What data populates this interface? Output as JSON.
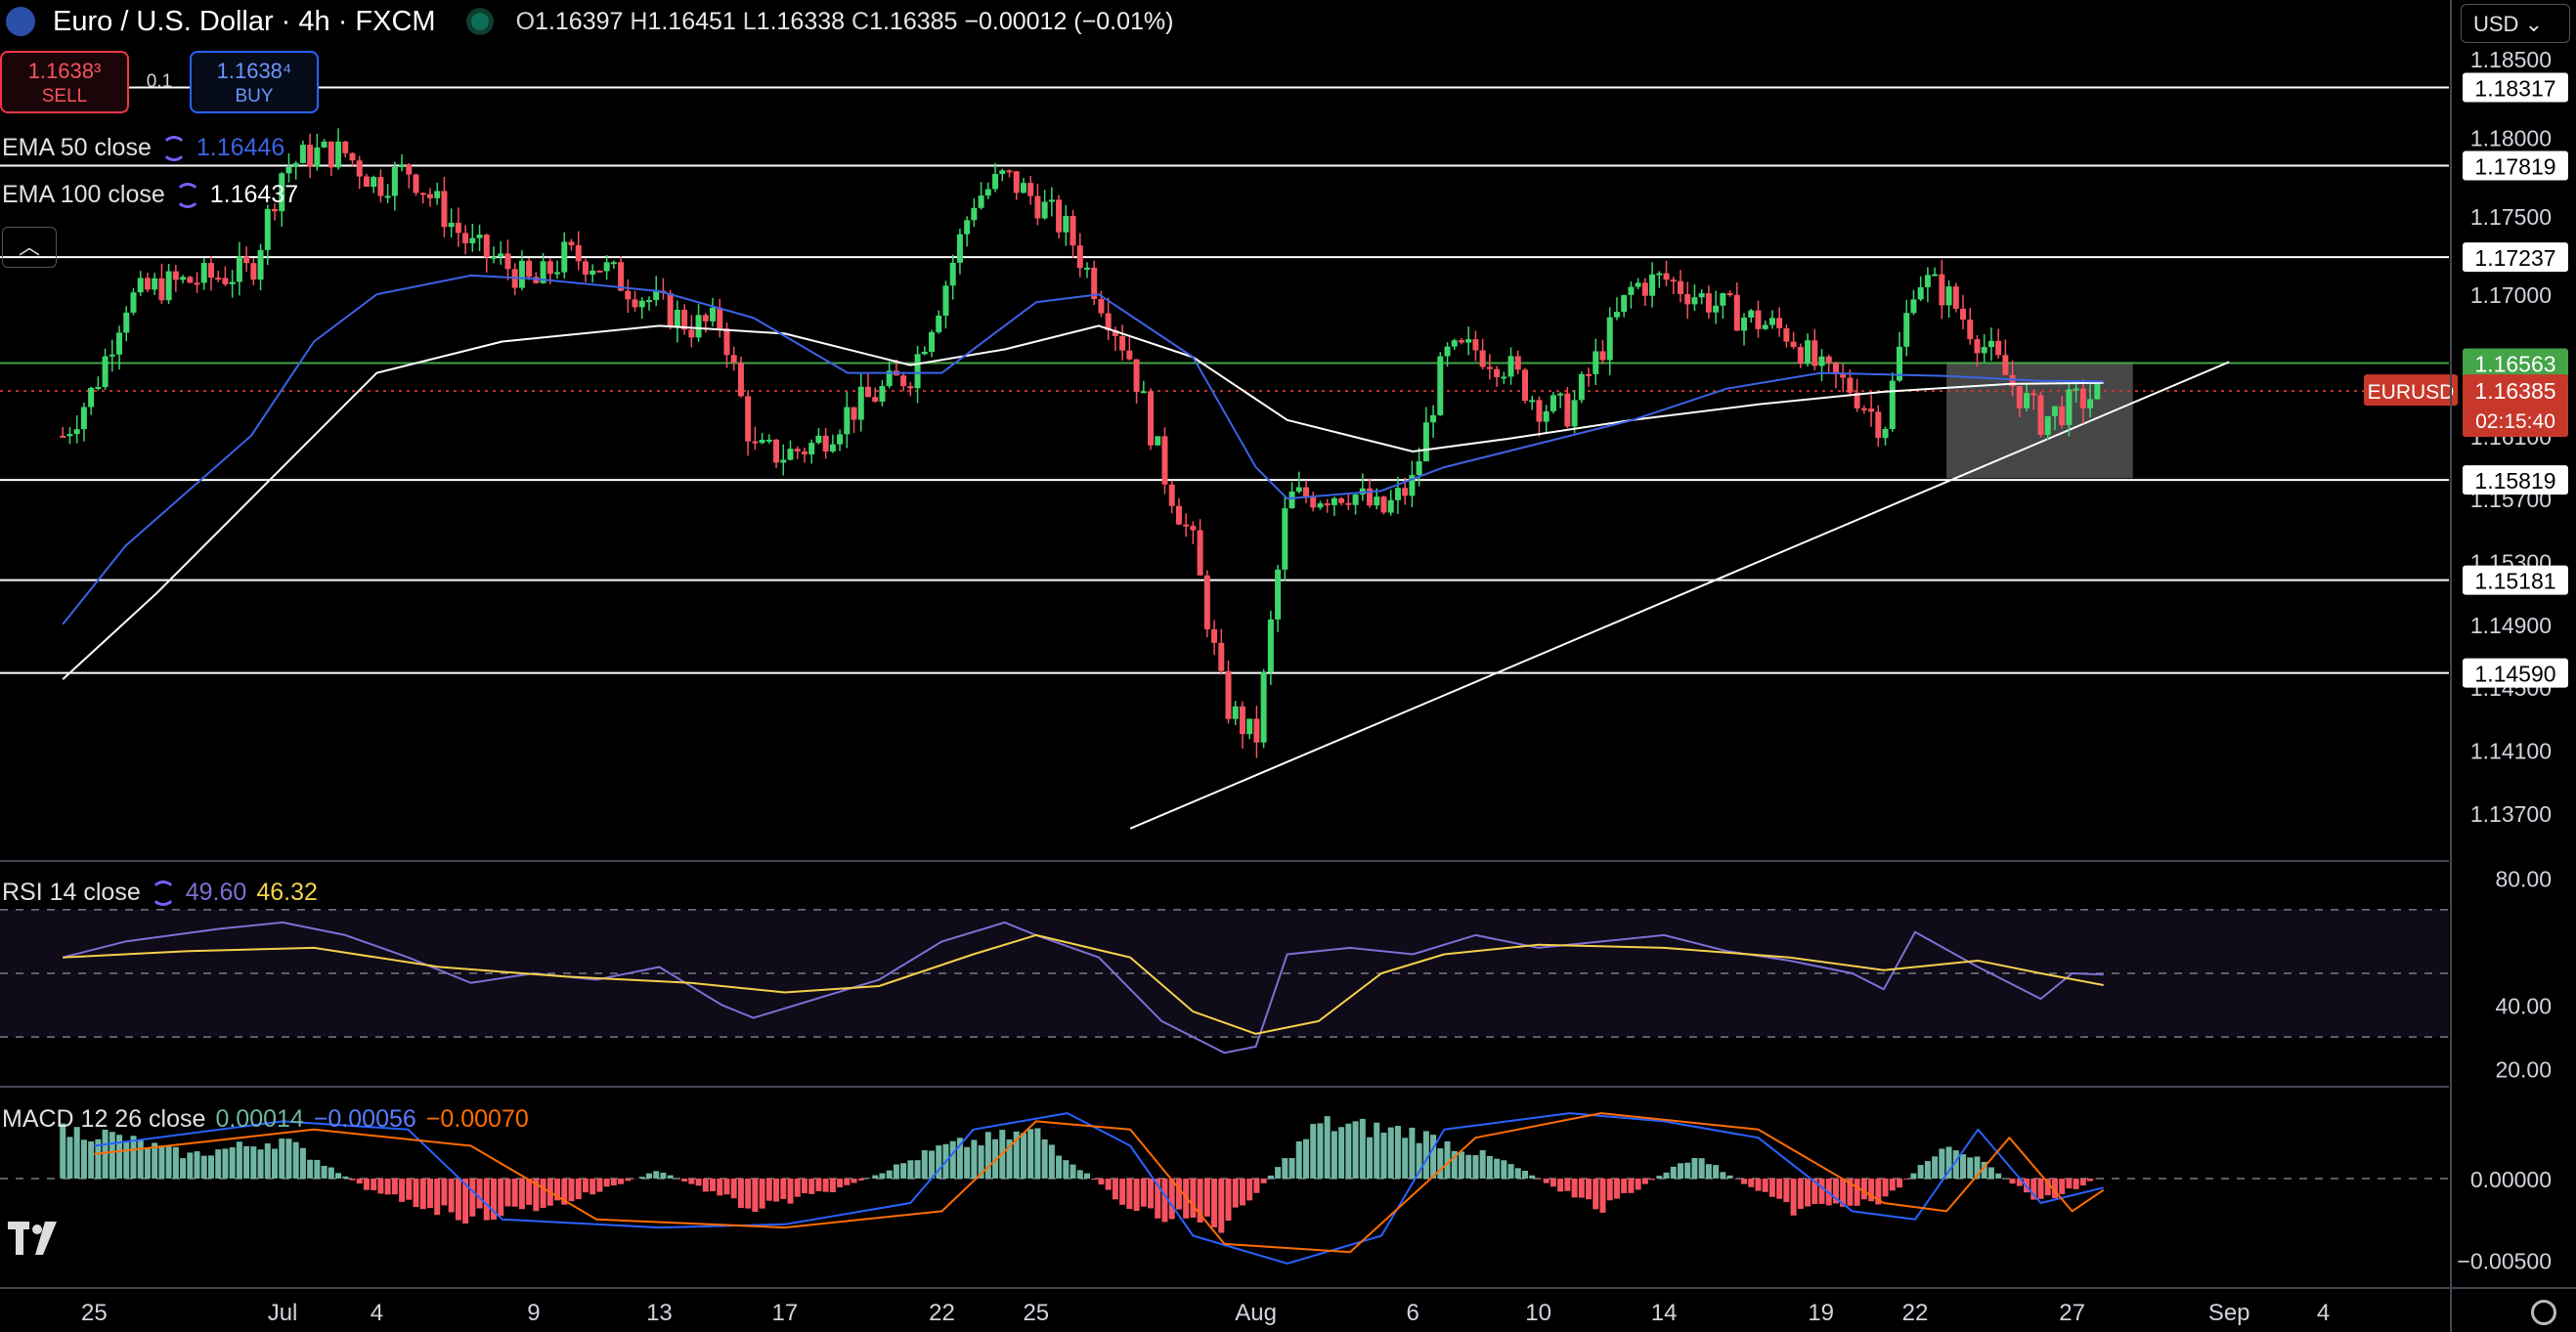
{
  "header": {
    "symbol_title": "Euro / U.S. Dollar · 4h · FXCM",
    "open_label": "O",
    "open": "1.16397",
    "high_label": "H",
    "high": "1.16451",
    "low_label": "L",
    "low": "1.16338",
    "close_label": "C",
    "close": "1.16385",
    "change": "−0.00012 (−0.01%)"
  },
  "trade": {
    "sell_price": "1.1638³",
    "sell_label": "SELL",
    "spread": "0.1",
    "buy_price": "1.1638⁴",
    "buy_label": "BUY"
  },
  "legend": {
    "ema50_label": "EMA 50 close",
    "ema50_value": "1.16446",
    "ema100_label": "EMA 100 close",
    "ema100_value": "1.16437",
    "rsi_label": "RSI 14 close",
    "rsi_value": "49.60",
    "rsi_ma_value": "46.32",
    "macd_label": "MACD 12 26 close",
    "macd_hist": "0.00014",
    "macd_line": "−0.00056",
    "macd_signal": "−0.00070"
  },
  "currency_selector": "USD",
  "colors": {
    "up": "#089981",
    "up_bright": "#3dd66b",
    "down": "#f7525f",
    "ema50": "#3b63e6",
    "ema100": "#ffffff",
    "rsi": "#7e6fd6",
    "rsi_ma": "#f5d04a",
    "macd": "#2962ff",
    "signal": "#ff6d00",
    "hist_pos": "#6fb5a2",
    "hist_neg": "#f7525f",
    "last_price": "#c7382b",
    "level_green": "#44a448"
  },
  "chart_data": [
    {
      "type": "candlestick",
      "symbol_tag": "EURUSD",
      "last_price": "1.16385",
      "countdown": "02:15:40",
      "y_axis_ticks": [
        "1.18500",
        "1.18000",
        "1.17500",
        "1.17000",
        "1.16100",
        "1.15700",
        "1.15300",
        "1.14900",
        "1.14500",
        "1.14100",
        "1.13700"
      ],
      "ylim": [
        1.134,
        1.186
      ],
      "horizontal_levels": [
        {
          "value": 1.18317,
          "label": "1.18317"
        },
        {
          "value": 1.17819,
          "label": "1.17819"
        },
        {
          "value": 1.17237,
          "label": "1.17237"
        },
        {
          "value": 1.16563,
          "label": "1.16563",
          "style": "green"
        },
        {
          "value": 1.15819,
          "label": "1.15819"
        },
        {
          "value": 1.15181,
          "label": "1.15181"
        },
        {
          "value": 1.1459,
          "label": "1.14590"
        }
      ],
      "x_axis_labels": [
        {
          "label": "25",
          "date": "2025-06-25"
        },
        {
          "label": "Jul",
          "date": "2025-07-01"
        },
        {
          "label": "4",
          "date": "2025-07-04"
        },
        {
          "label": "9",
          "date": "2025-07-09"
        },
        {
          "label": "13",
          "date": "2025-07-13"
        },
        {
          "label": "17",
          "date": "2025-07-17"
        },
        {
          "label": "22",
          "date": "2025-07-22"
        },
        {
          "label": "25",
          "date": "2025-07-25"
        },
        {
          "label": "Aug",
          "date": "2025-08-01"
        },
        {
          "label": "6",
          "date": "2025-08-06"
        },
        {
          "label": "10",
          "date": "2025-08-10"
        },
        {
          "label": "14",
          "date": "2025-08-14"
        },
        {
          "label": "19",
          "date": "2025-08-19"
        },
        {
          "label": "22",
          "date": "2025-08-22"
        },
        {
          "label": "27",
          "date": "2025-08-27"
        },
        {
          "label": "Sep",
          "date": "2025-09-01"
        },
        {
          "label": "4",
          "date": "2025-09-04"
        }
      ],
      "close_path": [
        [
          "2025-06-24",
          1.161
        ],
        [
          "2025-06-25",
          1.164
        ],
        [
          "2025-06-26",
          1.1695
        ],
        [
          "2025-06-27",
          1.1705
        ],
        [
          "2025-06-30",
          1.1715
        ],
        [
          "2025-07-01",
          1.178
        ],
        [
          "2025-07-02",
          1.179
        ],
        [
          "2025-07-03",
          1.179
        ],
        [
          "2025-07-04",
          1.177
        ],
        [
          "2025-07-05",
          1.178
        ],
        [
          "2025-07-07",
          1.173
        ],
        [
          "2025-07-08",
          1.172
        ],
        [
          "2025-07-09",
          1.1705
        ],
        [
          "2025-07-10",
          1.1725
        ],
        [
          "2025-07-11",
          1.172
        ],
        [
          "2025-07-12",
          1.1705
        ],
        [
          "2025-07-14",
          1.168
        ],
        [
          "2025-07-15",
          1.1682
        ],
        [
          "2025-07-16",
          1.16
        ],
        [
          "2025-07-17",
          1.1598
        ],
        [
          "2025-07-18",
          1.1605
        ],
        [
          "2025-07-19",
          1.1625
        ],
        [
          "2025-07-21",
          1.165
        ],
        [
          "2025-07-22",
          1.17
        ],
        [
          "2025-07-23",
          1.176
        ],
        [
          "2025-07-24",
          1.1775
        ],
        [
          "2025-07-25",
          1.176
        ],
        [
          "2025-07-26",
          1.174
        ],
        [
          "2025-07-27",
          1.17
        ],
        [
          "2025-07-28",
          1.166
        ],
        [
          "2025-07-29",
          1.159
        ],
        [
          "2025-07-30",
          1.154
        ],
        [
          "2025-07-31",
          1.144
        ],
        [
          "2025-08-01",
          1.1415
        ],
        [
          "2025-08-02",
          1.157
        ],
        [
          "2025-08-04",
          1.1575
        ],
        [
          "2025-08-05",
          1.156
        ],
        [
          "2025-08-06",
          1.158
        ],
        [
          "2025-08-07",
          1.166
        ],
        [
          "2025-08-08",
          1.1665
        ],
        [
          "2025-08-09",
          1.1655
        ],
        [
          "2025-08-10",
          1.163
        ],
        [
          "2025-08-11",
          1.1625
        ],
        [
          "2025-08-12",
          1.1665
        ],
        [
          "2025-08-13",
          1.1705
        ],
        [
          "2025-08-14",
          1.171
        ],
        [
          "2025-08-15",
          1.17
        ],
        [
          "2025-08-16",
          1.169
        ],
        [
          "2025-08-18",
          1.1675
        ],
        [
          "2025-08-19",
          1.165
        ],
        [
          "2025-08-20",
          1.164
        ],
        [
          "2025-08-21",
          1.1615
        ],
        [
          "2025-08-22",
          1.1712
        ],
        [
          "2025-08-23",
          1.17
        ],
        [
          "2025-08-25",
          1.1645
        ],
        [
          "2025-08-26",
          1.162
        ],
        [
          "2025-08-27",
          1.163
        ],
        [
          "2025-08-28",
          1.16385
        ]
      ],
      "ema50_path": [
        [
          "2025-06-24",
          1.149
        ],
        [
          "2025-06-26",
          1.154
        ],
        [
          "2025-06-30",
          1.161
        ],
        [
          "2025-07-02",
          1.167
        ],
        [
          "2025-07-04",
          1.17
        ],
        [
          "2025-07-07",
          1.1712
        ],
        [
          "2025-07-09",
          1.171
        ],
        [
          "2025-07-13",
          1.1702
        ],
        [
          "2025-07-16",
          1.1685
        ],
        [
          "2025-07-19",
          1.165
        ],
        [
          "2025-07-22",
          1.165
        ],
        [
          "2025-07-25",
          1.1695
        ],
        [
          "2025-07-27",
          1.17
        ],
        [
          "2025-07-30",
          1.166
        ],
        [
          "2025-08-01",
          1.159
        ],
        [
          "2025-08-02",
          1.157
        ],
        [
          "2025-08-05",
          1.1575
        ],
        [
          "2025-08-07",
          1.159
        ],
        [
          "2025-08-10",
          1.1605
        ],
        [
          "2025-08-13",
          1.162
        ],
        [
          "2025-08-16",
          1.164
        ],
        [
          "2025-08-19",
          1.165
        ],
        [
          "2025-08-23",
          1.1648
        ],
        [
          "2025-08-26",
          1.1645
        ],
        [
          "2025-08-28",
          1.16446
        ]
      ],
      "ema100_path": [
        [
          "2025-06-24",
          1.1455
        ],
        [
          "2025-06-27",
          1.151
        ],
        [
          "2025-07-01",
          1.159
        ],
        [
          "2025-07-04",
          1.165
        ],
        [
          "2025-07-08",
          1.167
        ],
        [
          "2025-07-13",
          1.168
        ],
        [
          "2025-07-17",
          1.1675
        ],
        [
          "2025-07-21",
          1.1655
        ],
        [
          "2025-07-24",
          1.1665
        ],
        [
          "2025-07-27",
          1.168
        ],
        [
          "2025-07-30",
          1.166
        ],
        [
          "2025-08-02",
          1.162
        ],
        [
          "2025-08-06",
          1.16
        ],
        [
          "2025-08-09",
          1.1608
        ],
        [
          "2025-08-13",
          1.162
        ],
        [
          "2025-08-17",
          1.163
        ],
        [
          "2025-08-21",
          1.1638
        ],
        [
          "2025-08-25",
          1.1643
        ],
        [
          "2025-08-28",
          1.16437
        ]
      ],
      "trendline": [
        [
          "2025-07-28",
          1.136
        ],
        [
          "2025-09-01",
          1.1657
        ]
      ],
      "highlight_box": {
        "x0": "2025-08-23",
        "x1": "2025-08-28",
        "y0": 1.1583,
        "y1": 1.1657
      }
    },
    {
      "type": "line",
      "name": "RSI",
      "y_axis_ticks": [
        "80.00",
        "40.00",
        "20.00"
      ],
      "ylim": [
        15,
        85
      ],
      "band": [
        30,
        70
      ],
      "rsi_path": [
        [
          "2025-06-24",
          55
        ],
        [
          "2025-06-26",
          60
        ],
        [
          "2025-06-29",
          64
        ],
        [
          "2025-07-01",
          66
        ],
        [
          "2025-07-03",
          62
        ],
        [
          "2025-07-05",
          55
        ],
        [
          "2025-07-07",
          47
        ],
        [
          "2025-07-09",
          50
        ],
        [
          "2025-07-11",
          48
        ],
        [
          "2025-07-13",
          52
        ],
        [
          "2025-07-15",
          40
        ],
        [
          "2025-07-16",
          36
        ],
        [
          "2025-07-18",
          42
        ],
        [
          "2025-07-20",
          48
        ],
        [
          "2025-07-22",
          60
        ],
        [
          "2025-07-24",
          66
        ],
        [
          "2025-07-25",
          62
        ],
        [
          "2025-07-27",
          55
        ],
        [
          "2025-07-29",
          35
        ],
        [
          "2025-07-30",
          30
        ],
        [
          "2025-07-31",
          25
        ],
        [
          "2025-08-01",
          27
        ],
        [
          "2025-08-02",
          56
        ],
        [
          "2025-08-04",
          58
        ],
        [
          "2025-08-06",
          56
        ],
        [
          "2025-08-08",
          62
        ],
        [
          "2025-08-10",
          58
        ],
        [
          "2025-08-12",
          60
        ],
        [
          "2025-08-14",
          62
        ],
        [
          "2025-08-16",
          57
        ],
        [
          "2025-08-18",
          54
        ],
        [
          "2025-08-20",
          50
        ],
        [
          "2025-08-21",
          45
        ],
        [
          "2025-08-22",
          63
        ],
        [
          "2025-08-24",
          52
        ],
        [
          "2025-08-26",
          42
        ],
        [
          "2025-08-27",
          50
        ],
        [
          "2025-08-28",
          49.6
        ]
      ],
      "rsi_ma_path": [
        [
          "2025-06-24",
          55
        ],
        [
          "2025-06-28",
          57
        ],
        [
          "2025-07-02",
          58
        ],
        [
          "2025-07-06",
          52
        ],
        [
          "2025-07-10",
          49
        ],
        [
          "2025-07-14",
          47
        ],
        [
          "2025-07-17",
          44
        ],
        [
          "2025-07-20",
          46
        ],
        [
          "2025-07-23",
          56
        ],
        [
          "2025-07-25",
          62
        ],
        [
          "2025-07-28",
          55
        ],
        [
          "2025-07-30",
          38
        ],
        [
          "2025-08-01",
          31
        ],
        [
          "2025-08-03",
          35
        ],
        [
          "2025-08-05",
          50
        ],
        [
          "2025-08-07",
          56
        ],
        [
          "2025-08-10",
          59
        ],
        [
          "2025-08-14",
          58
        ],
        [
          "2025-08-18",
          55
        ],
        [
          "2025-08-21",
          51
        ],
        [
          "2025-08-24",
          54
        ],
        [
          "2025-08-26",
          50
        ],
        [
          "2025-08-28",
          46.32
        ]
      ]
    },
    {
      "type": "bar",
      "name": "MACD",
      "y_axis_ticks": [
        "0.00000",
        "−0.00500"
      ],
      "ylim": [
        -0.0067,
        0.0055
      ],
      "hist": [
        [
          "2025-06-25",
          0.003
        ],
        [
          "2025-06-28",
          0.0015
        ],
        [
          "2025-07-01",
          0.0025
        ],
        [
          "2025-07-04",
          -0.001
        ],
        [
          "2025-07-07",
          -0.0025
        ],
        [
          "2025-07-10",
          -0.0015
        ],
        [
          "2025-07-13",
          0.0005
        ],
        [
          "2025-07-16",
          -0.002
        ],
        [
          "2025-07-19",
          -0.0005
        ],
        [
          "2025-07-22",
          0.002
        ],
        [
          "2025-07-25",
          0.003
        ],
        [
          "2025-07-28",
          -0.002
        ],
        [
          "2025-07-31",
          -0.003
        ],
        [
          "2025-08-03",
          0.0035
        ],
        [
          "2025-08-06",
          0.003
        ],
        [
          "2025-08-09",
          0.001
        ],
        [
          "2025-08-12",
          -0.002
        ],
        [
          "2025-08-15",
          0.0015
        ],
        [
          "2025-08-18",
          -0.002
        ],
        [
          "2025-08-21",
          -0.0015
        ],
        [
          "2025-08-23",
          0.0025
        ],
        [
          "2025-08-26",
          -0.0015
        ],
        [
          "2025-08-28",
          0.00014
        ]
      ],
      "macd_path": [
        [
          "2025-06-25",
          0.002
        ],
        [
          "2025-07-01",
          0.0035
        ],
        [
          "2025-07-05",
          0.003
        ],
        [
          "2025-07-08",
          -0.0025
        ],
        [
          "2025-07-13",
          -0.003
        ],
        [
          "2025-07-17",
          -0.0028
        ],
        [
          "2025-07-21",
          -0.0015
        ],
        [
          "2025-07-23",
          0.003
        ],
        [
          "2025-07-26",
          0.004
        ],
        [
          "2025-07-28",
          0.002
        ],
        [
          "2025-07-30",
          -0.0035
        ],
        [
          "2025-08-02",
          -0.0052
        ],
        [
          "2025-08-05",
          -0.0035
        ],
        [
          "2025-08-07",
          0.003
        ],
        [
          "2025-08-11",
          0.004
        ],
        [
          "2025-08-14",
          0.0035
        ],
        [
          "2025-08-17",
          0.0025
        ],
        [
          "2025-08-20",
          -0.002
        ],
        [
          "2025-08-22",
          -0.0025
        ],
        [
          "2025-08-24",
          0.003
        ],
        [
          "2025-08-26",
          -0.0015
        ],
        [
          "2025-08-28",
          -0.00056
        ]
      ],
      "signal_path": [
        [
          "2025-06-25",
          0.0015
        ],
        [
          "2025-07-02",
          0.003
        ],
        [
          "2025-07-07",
          0.002
        ],
        [
          "2025-07-11",
          -0.0025
        ],
        [
          "2025-07-17",
          -0.003
        ],
        [
          "2025-07-22",
          -0.002
        ],
        [
          "2025-07-25",
          0.0035
        ],
        [
          "2025-07-28",
          0.003
        ],
        [
          "2025-07-31",
          -0.004
        ],
        [
          "2025-08-04",
          -0.0045
        ],
        [
          "2025-08-08",
          0.0025
        ],
        [
          "2025-08-12",
          0.004
        ],
        [
          "2025-08-17",
          0.003
        ],
        [
          "2025-08-21",
          -0.0015
        ],
        [
          "2025-08-23",
          -0.002
        ],
        [
          "2025-08-25",
          0.0025
        ],
        [
          "2025-08-27",
          -0.002
        ],
        [
          "2025-08-28",
          -0.0007
        ]
      ]
    }
  ]
}
